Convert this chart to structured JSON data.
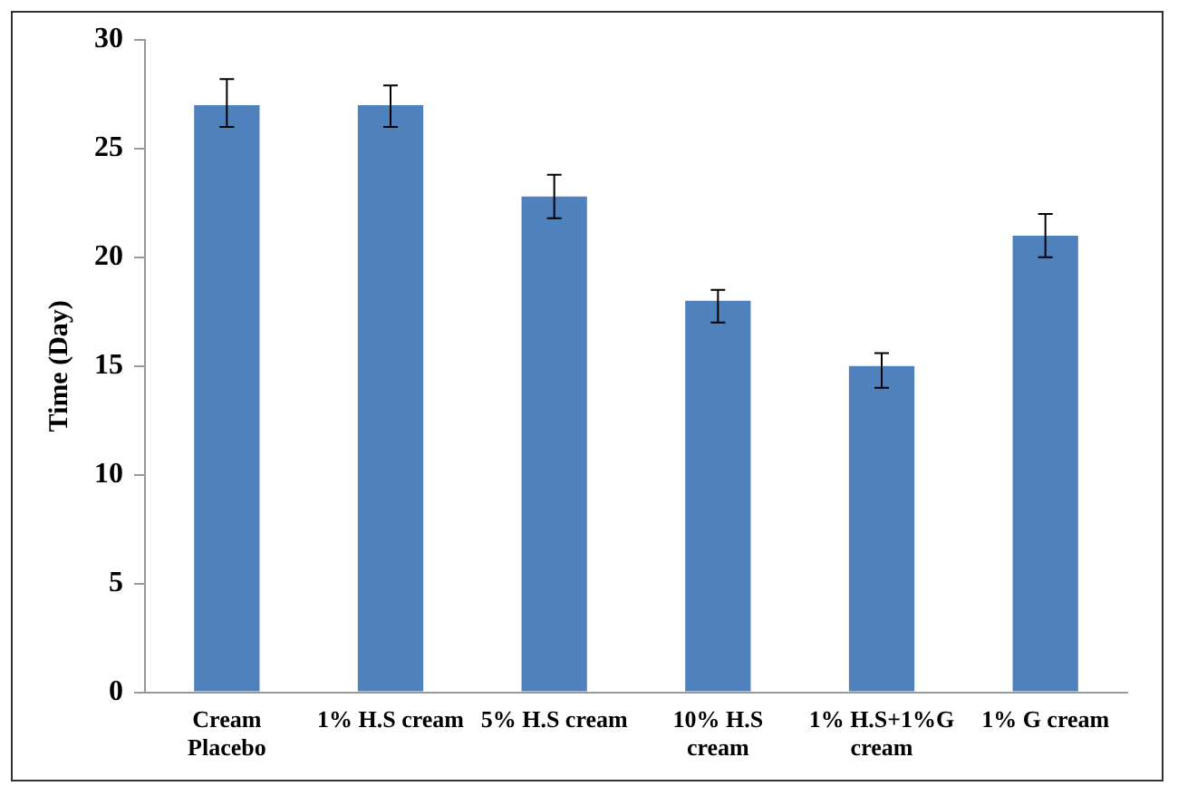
{
  "chart_data": {
    "type": "bar",
    "ylabel": "Time (Day)",
    "categories": [
      "Cream\nPlacebo",
      "1% H.S cream",
      "5% H.S cream",
      "10% H.S\ncream",
      "1% H.S+1%G\ncream",
      "1% G cream"
    ],
    "values": [
      27,
      27,
      22.8,
      18,
      15,
      21
    ],
    "errors": [
      [
        26,
        28.2
      ],
      [
        26,
        27.9
      ],
      [
        21.8,
        23.8
      ],
      [
        17,
        18.5
      ],
      [
        14,
        15.6
      ],
      [
        20,
        22
      ]
    ],
    "color": "#4f81bd",
    "ylim": [
      0,
      30
    ],
    "yticks": [
      0,
      5,
      10,
      15,
      20,
      25,
      30
    ],
    "grid": false,
    "legend": false
  }
}
